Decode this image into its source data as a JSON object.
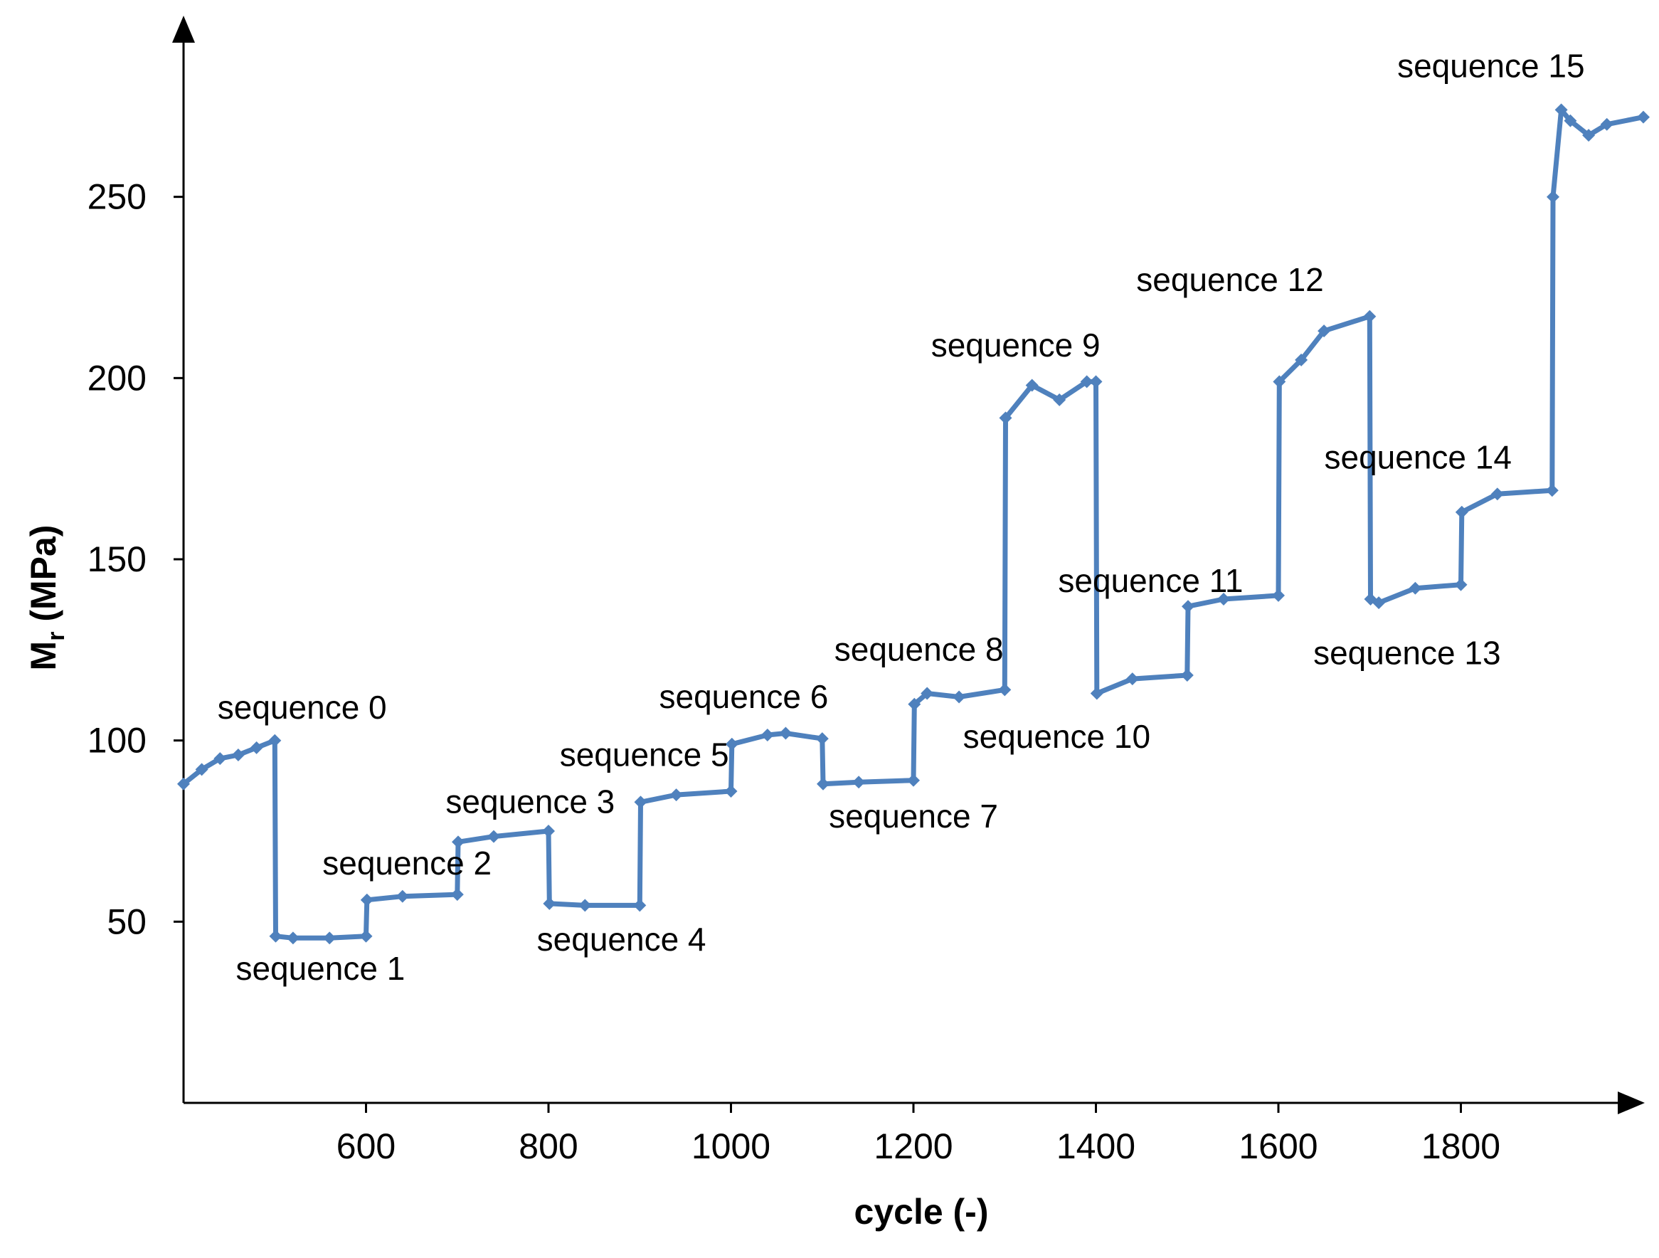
{
  "chart_data": {
    "type": "line",
    "title": "",
    "xlabel": "cycle (-)",
    "ylabel_main": "M",
    "ylabel_sub": "r",
    "ylabel_unit": " (MPa)",
    "xlim": [
      400,
      2000
    ],
    "ylim": [
      0,
      300
    ],
    "xticks": [
      600,
      800,
      1000,
      1200,
      1400,
      1600,
      1800
    ],
    "yticks": [
      50,
      100,
      150,
      200,
      250
    ],
    "grid": false,
    "legend": "none",
    "series_color": "#4F81BD",
    "series": [
      {
        "name": "Mr",
        "x": [
          400,
          420,
          440,
          460,
          480,
          500,
          501,
          520,
          560,
          600,
          601,
          640,
          700,
          701,
          740,
          800,
          801,
          840,
          900,
          901,
          940,
          1000,
          1001,
          1040,
          1060,
          1100,
          1101,
          1140,
          1200,
          1201,
          1215,
          1250,
          1300,
          1301,
          1330,
          1360,
          1390,
          1400,
          1401,
          1440,
          1500,
          1501,
          1540,
          1600,
          1601,
          1625,
          1650,
          1700,
          1701,
          1710,
          1750,
          1800,
          1801,
          1840,
          1900,
          1901,
          1910,
          1920,
          1940,
          1960,
          2000
        ],
        "y": [
          88,
          92,
          95,
          96,
          98,
          100,
          46,
          45.5,
          45.5,
          46,
          56,
          57,
          57.5,
          72,
          73.5,
          75,
          55,
          54.5,
          54.5,
          83,
          85,
          86,
          99,
          101.5,
          102,
          100.5,
          88,
          88.5,
          89,
          110,
          113,
          112,
          114,
          189,
          198,
          194,
          199,
          199,
          113,
          117,
          118,
          137,
          139,
          140,
          199,
          205,
          213,
          217,
          139,
          138,
          142,
          143,
          163,
          168,
          169,
          250,
          274,
          271,
          267,
          270,
          272
        ]
      }
    ],
    "annotations": [
      {
        "text": "sequence 0",
        "x": 530,
        "y": 106
      },
      {
        "text": "sequence 1",
        "x": 550,
        "y": 34
      },
      {
        "text": "sequence 2",
        "x": 645,
        "y": 63
      },
      {
        "text": "sequence 3",
        "x": 780,
        "y": 80
      },
      {
        "text": "sequence 4",
        "x": 880,
        "y": 42
      },
      {
        "text": "sequence 5",
        "x": 905,
        "y": 93
      },
      {
        "text": "sequence 6",
        "x": 1014,
        "y": 109
      },
      {
        "text": "sequence 7",
        "x": 1200,
        "y": 76
      },
      {
        "text": "sequence 8",
        "x": 1206,
        "y": 122
      },
      {
        "text": "sequence 9",
        "x": 1312,
        "y": 206
      },
      {
        "text": "sequence 10",
        "x": 1357,
        "y": 98
      },
      {
        "text": "sequence 11",
        "x": 1460,
        "y": 141
      },
      {
        "text": "sequence 12",
        "x": 1547,
        "y": 224
      },
      {
        "text": "sequence 13",
        "x": 1741,
        "y": 121
      },
      {
        "text": "sequence 14",
        "x": 1753,
        "y": 175
      },
      {
        "text": "sequence 15",
        "x": 1833,
        "y": 283
      }
    ]
  }
}
